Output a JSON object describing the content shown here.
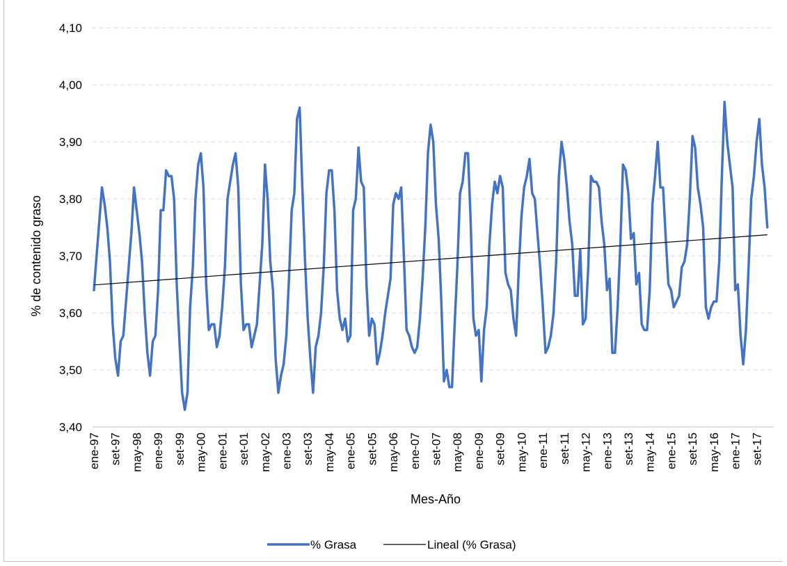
{
  "chart_data": {
    "type": "line",
    "xlabel": "Mes-Año",
    "ylabel": "%  de contenido graso",
    "ylim": [
      3.4,
      4.1
    ],
    "y_ticks": [
      "3,40",
      "3,50",
      "3,60",
      "3,70",
      "3,80",
      "3,90",
      "4,00",
      "4,10"
    ],
    "x_tick_labels": [
      "ene-97",
      "set-97",
      "may-98",
      "ene-99",
      "set-99",
      "may-00",
      "ene-01",
      "set-01",
      "may-02",
      "ene-03",
      "set-03",
      "may-04",
      "ene-05",
      "set-05",
      "may-06",
      "ene-07",
      "set-07",
      "may-08",
      "ene-09",
      "set-09",
      "may-10",
      "ene-11",
      "set-11",
      "may-12",
      "ene-13",
      "set-13",
      "may-14",
      "ene-15",
      "set-15",
      "may-16",
      "ene-17",
      "set-17"
    ],
    "x_start": "ene-97",
    "grid": true,
    "legend_position": "bottom",
    "colors": {
      "series": "#4472C4",
      "trend": "#000000",
      "grid": "#d9d9d9"
    },
    "series": [
      {
        "name": "% Grasa",
        "values": [
          3.64,
          3.7,
          3.76,
          3.82,
          3.79,
          3.75,
          3.69,
          3.58,
          3.52,
          3.49,
          3.55,
          3.56,
          3.62,
          3.68,
          3.74,
          3.82,
          3.78,
          3.74,
          3.69,
          3.6,
          3.53,
          3.49,
          3.55,
          3.56,
          3.64,
          3.78,
          3.78,
          3.85,
          3.84,
          3.84,
          3.8,
          3.65,
          3.55,
          3.46,
          3.43,
          3.46,
          3.61,
          3.68,
          3.8,
          3.86,
          3.88,
          3.82,
          3.65,
          3.57,
          3.58,
          3.58,
          3.54,
          3.56,
          3.61,
          3.68,
          3.8,
          3.83,
          3.86,
          3.88,
          3.82,
          3.65,
          3.57,
          3.58,
          3.58,
          3.54,
          3.56,
          3.58,
          3.65,
          3.72,
          3.86,
          3.8,
          3.69,
          3.64,
          3.52,
          3.46,
          3.49,
          3.51,
          3.56,
          3.66,
          3.78,
          3.81,
          3.94,
          3.96,
          3.82,
          3.69,
          3.59,
          3.52,
          3.46,
          3.54,
          3.56,
          3.6,
          3.68,
          3.81,
          3.85,
          3.85,
          3.78,
          3.64,
          3.59,
          3.57,
          3.59,
          3.55,
          3.56,
          3.78,
          3.8,
          3.89,
          3.83,
          3.82,
          3.65,
          3.56,
          3.59,
          3.58,
          3.51,
          3.53,
          3.56,
          3.6,
          3.63,
          3.66,
          3.79,
          3.81,
          3.8,
          3.82,
          3.7,
          3.57,
          3.56,
          3.54,
          3.53,
          3.54,
          3.59,
          3.66,
          3.75,
          3.88,
          3.93,
          3.9,
          3.79,
          3.73,
          3.62,
          3.48,
          3.5,
          3.47,
          3.47,
          3.58,
          3.68,
          3.81,
          3.83,
          3.88,
          3.88,
          3.76,
          3.59,
          3.56,
          3.57,
          3.48,
          3.57,
          3.61,
          3.72,
          3.79,
          3.83,
          3.81,
          3.84,
          3.82,
          3.67,
          3.65,
          3.64,
          3.59,
          3.56,
          3.68,
          3.77,
          3.82,
          3.84,
          3.87,
          3.81,
          3.8,
          3.74,
          3.68,
          3.61,
          3.53,
          3.54,
          3.56,
          3.6,
          3.69,
          3.84,
          3.9,
          3.87,
          3.82,
          3.76,
          3.72,
          3.63,
          3.63,
          3.71,
          3.58,
          3.59,
          3.68,
          3.84,
          3.83,
          3.83,
          3.82,
          3.76,
          3.72,
          3.64,
          3.66,
          3.53,
          3.53,
          3.61,
          3.72,
          3.86,
          3.85,
          3.81,
          3.73,
          3.74,
          3.65,
          3.67,
          3.58,
          3.57,
          3.57,
          3.64,
          3.79,
          3.84,
          3.9,
          3.82,
          3.82,
          3.73,
          3.65,
          3.64,
          3.61,
          3.62,
          3.63,
          3.68,
          3.69,
          3.72,
          3.8,
          3.91,
          3.89,
          3.82,
          3.79,
          3.75,
          3.61,
          3.59,
          3.61,
          3.62,
          3.62,
          3.69,
          3.84,
          3.97,
          3.9,
          3.86,
          3.82,
          3.64,
          3.65,
          3.56,
          3.51,
          3.57,
          3.68,
          3.8,
          3.84,
          3.9,
          3.94,
          3.86,
          3.82,
          3.75
        ]
      },
      {
        "name": "Lineal (% Grasa)",
        "trendline": true,
        "values": [
          3.649,
          3.737
        ]
      }
    ]
  }
}
